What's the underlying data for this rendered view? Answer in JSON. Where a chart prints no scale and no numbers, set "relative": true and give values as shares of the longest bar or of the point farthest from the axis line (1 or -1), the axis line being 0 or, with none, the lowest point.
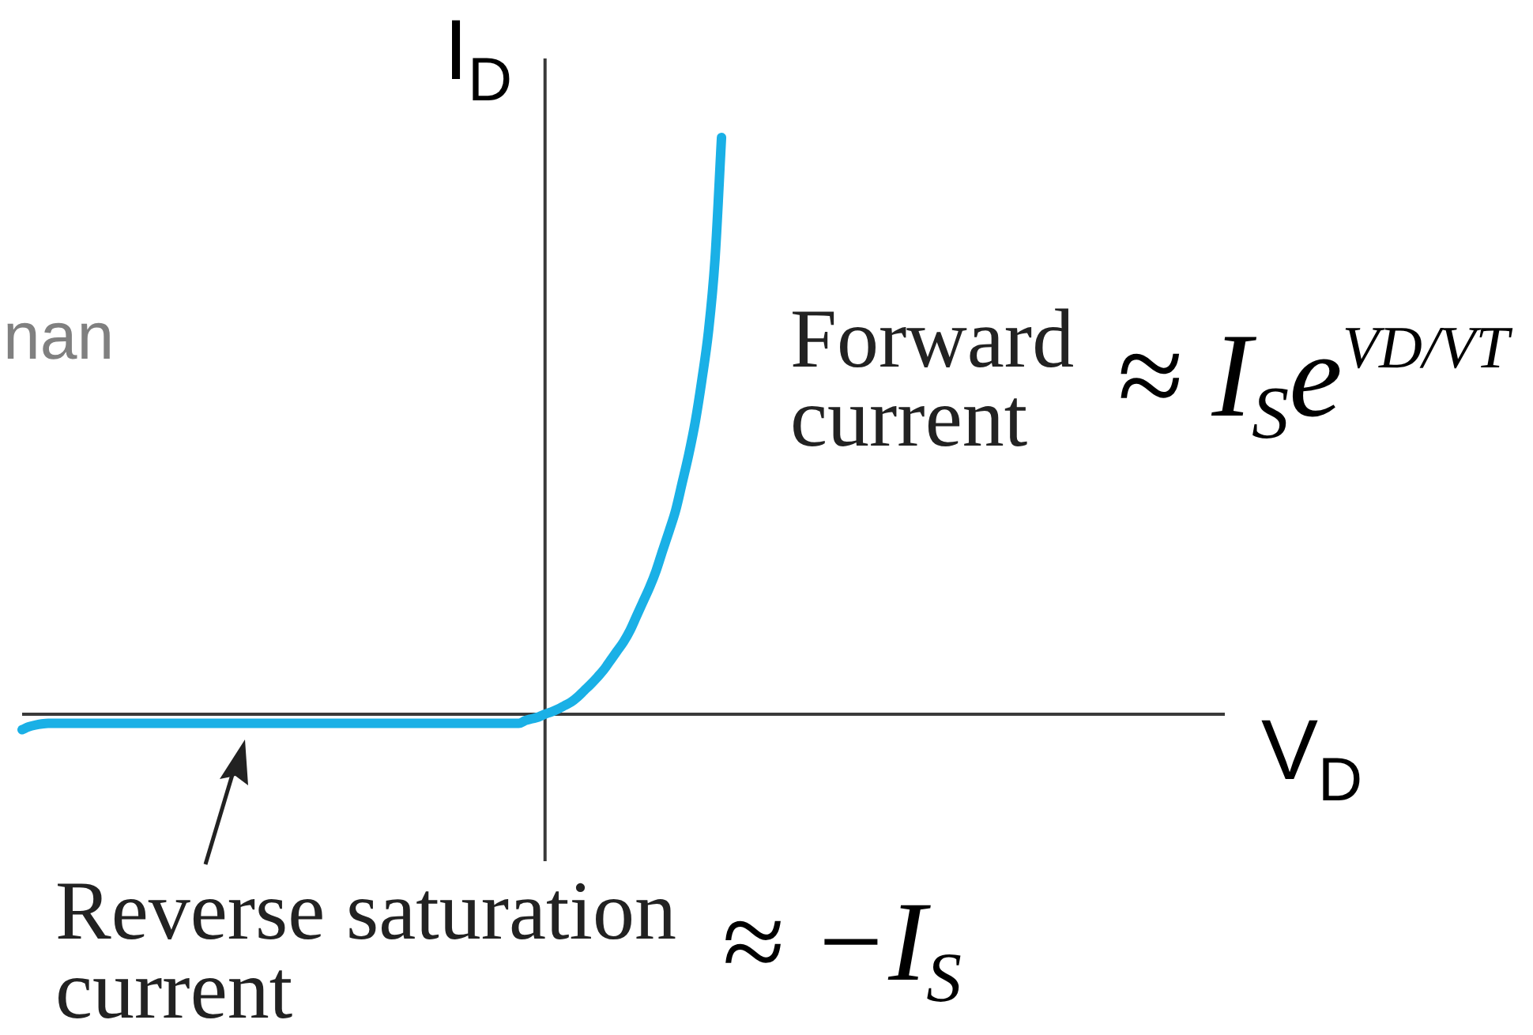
{
  "chart_data": {
    "type": "line",
    "xlabel": "V$_{D}$",
    "ylabel": "I$_{D}$",
    "relative": true,
    "line_style": "solid",
    "categories": [
      null,
      null,
      null,
      null,
      null,
      null,
      null,
      null,
      null,
      null,
      null,
      null,
      null,
      null,
      null,
      null,
      null,
      null,
      null,
      null,
      null,
      null,
      null,
      null,
      null,
      null,
      null,
      null,
      null,
      null,
      null,
      null,
      null,
      null,
      null,
      null,
      null,
      null,
      null,
      null,
      null,
      null,
      null,
      null,
      null,
      null,
      null,
      null,
      null,
      null,
      null,
      null,
      null,
      null,
      null,
      null,
      null,
      null,
      null,
      null,
      null,
      null,
      null,
      null,
      null,
      null,
      null,
      null,
      null,
      null,
      null,
      null,
      null,
      null,
      null,
      null,
      null,
      null,
      null,
      null,
      null,
      null,
      null,
      null,
      null,
      null,
      null,
      null,
      null,
      null,
      null,
      null,
      null,
      null,
      null,
      null,
      null,
      null,
      null,
      null,
      null,
      null,
      null,
      null,
      null,
      null,
      null,
      null,
      null,
      null,
      null,
      null,
      null,
      null,
      null,
      null,
      null,
      null,
      null,
      null,
      null,
      null,
      null,
      null,
      null,
      null,
      null,
      null,
      null,
      null,
      null,
      null,
      null,
      null,
      null,
      null,
      null,
      null,
      null,
      null,
      null,
      null,
      null,
      null,
      null,
      null,
      null,
      null,
      null,
      null,
      null,
      null,
      null,
      null,
      null,
      null,
      null,
      null,
      null,
      null,
      null,
      null,
      null,
      null,
      null,
      null,
      null,
      null,
      null,
      null,
      null,
      null,
      null,
      null,
      null,
      null,
      null,
      null,
      null,
      null,
      null,
      null,
      null,
      null,
      null
    ],
    "series": [
      {
        "color": "#1ab0e6",
        "values": [
          -0.027,
          -0.022,
          -0.019,
          -0.017,
          -0.016,
          -0.016,
          -0.016,
          -0.016,
          -0.016,
          -0.016,
          -0.016,
          -0.016,
          -0.016,
          -0.016,
          -0.016,
          -0.016,
          -0.016,
          -0.016,
          -0.016,
          -0.016,
          -0.016,
          -0.016,
          -0.016,
          -0.016,
          -0.016,
          -0.016,
          -0.016,
          -0.016,
          -0.016,
          -0.016,
          -0.016,
          -0.016,
          -0.016,
          -0.016,
          -0.016,
          -0.016,
          -0.016,
          -0.016,
          -0.016,
          -0.016,
          -0.016,
          -0.016,
          -0.016,
          -0.016,
          -0.016,
          -0.016,
          -0.016,
          -0.016,
          -0.016,
          -0.016,
          -0.016,
          -0.016,
          -0.016,
          -0.016,
          -0.016,
          -0.016,
          -0.016,
          -0.016,
          -0.016,
          -0.016,
          -0.016,
          -0.016,
          -0.016,
          -0.016,
          -0.016,
          -0.016,
          -0.016,
          -0.016,
          -0.016,
          -0.016,
          -0.016,
          -0.016,
          -0.016,
          -0.016,
          -0.016,
          -0.016,
          -0.016,
          -0.011,
          -0.008,
          -0.005,
          0,
          0.004,
          0.009,
          0.015,
          0.021,
          0.03,
          0.041,
          0.052,
          0.064,
          0.077,
          0.093,
          0.109,
          0.125,
          0.145,
          0.17,
          0.195,
          0.22,
          0.249,
          0.284,
          0.318,
          0.354,
          0.402,
          0.451,
          0.508,
          0.58,
          0.663,
          0.788,
          1,
          null,
          null,
          null,
          null,
          null,
          null,
          null,
          null,
          null,
          null,
          null,
          null,
          null,
          null,
          null,
          null,
          null,
          null,
          null,
          null,
          null,
          null,
          null,
          null,
          null,
          null,
          null,
          null,
          null,
          null,
          null,
          null,
          null,
          null,
          null,
          null,
          null,
          null,
          null,
          null,
          null,
          null,
          null,
          null,
          null,
          null,
          null,
          null,
          null,
          null,
          null,
          null,
          null,
          null,
          null,
          null,
          null,
          null,
          null,
          null,
          null,
          null,
          null,
          null,
          null,
          null,
          null,
          null,
          null,
          null,
          null,
          null,
          null,
          null,
          null,
          null,
          null
        ]
      }
    ],
    "annotations": [
      "nan",
      "Forward current",
      "≈ I$_{S}$e$^{VD/VT}$",
      "Reverse saturation current",
      "≈ −I$_{S}$"
    ]
  }
}
